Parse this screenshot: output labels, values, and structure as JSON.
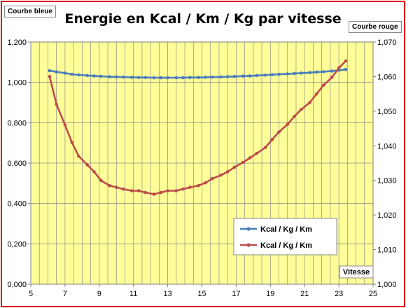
{
  "chart_data": {
    "type": "line",
    "title": "Energie en Kcal / Km / Kg par vitesse",
    "left_axis_label": "Courbe bleue",
    "right_axis_label": "Courbe rouge",
    "xlabel": "Vitesse",
    "xlim": [
      5,
      25
    ],
    "x_ticks": [
      "5",
      "7",
      "9",
      "11",
      "13",
      "15",
      "17",
      "19",
      "21",
      "23",
      "25"
    ],
    "ylim_left": [
      0,
      1.2
    ],
    "y_ticks_left": [
      "0,000",
      "0,200",
      "0,400",
      "0,600",
      "0,800",
      "1,000",
      "1,200"
    ],
    "ylim_right": [
      1.0,
      1.07
    ],
    "y_ticks_right": [
      "1,000",
      "1,010",
      "1,020",
      "1,030",
      "1,040",
      "1,050",
      "1,060",
      "1,070"
    ],
    "grid": true,
    "plot_background": "#ffff99",
    "legend_position": "bottom-right",
    "series": [
      {
        "name": "Kcal / Kg / Km",
        "axis": "left",
        "color": "#4a7ebb",
        "x": [
          6.1,
          6.5,
          7.0,
          7.4,
          7.8,
          8.3,
          8.7,
          9.1,
          9.6,
          10.0,
          10.4,
          10.9,
          11.3,
          11.7,
          12.2,
          12.6,
          13.0,
          13.5,
          13.9,
          14.3,
          14.8,
          15.2,
          15.6,
          16.1,
          16.5,
          16.9,
          17.4,
          17.8,
          18.2,
          18.7,
          19.1,
          19.5,
          20.0,
          20.4,
          20.8,
          21.3,
          21.7,
          22.1,
          22.6,
          23.0,
          23.4
        ],
        "y": [
          1.058,
          1.052,
          1.046,
          1.04,
          1.037,
          1.034,
          1.032,
          1.03,
          1.028,
          1.027,
          1.026,
          1.025,
          1.024,
          1.024,
          1.023,
          1.023,
          1.023,
          1.023,
          1.023,
          1.024,
          1.024,
          1.025,
          1.026,
          1.027,
          1.028,
          1.029,
          1.031,
          1.032,
          1.034,
          1.036,
          1.038,
          1.04,
          1.042,
          1.044,
          1.046,
          1.048,
          1.051,
          1.053,
          1.056,
          1.06,
          1.064
        ]
      },
      {
        "name": "Kcal / Kg / Km",
        "axis": "right",
        "color": "#be4b48",
        "x": [
          6.1,
          6.5,
          7.0,
          7.4,
          7.8,
          8.3,
          8.7,
          9.1,
          9.6,
          10.0,
          10.4,
          10.9,
          11.3,
          11.7,
          12.2,
          12.6,
          13.0,
          13.5,
          13.9,
          14.3,
          14.8,
          15.2,
          15.6,
          16.1,
          16.5,
          16.9,
          17.4,
          17.8,
          18.2,
          18.7,
          19.1,
          19.5,
          20.0,
          20.4,
          20.8,
          21.3,
          21.7,
          22.1,
          22.6,
          23.0,
          23.4
        ],
        "y": [
          1.06,
          1.052,
          1.046,
          1.041,
          1.037,
          1.0345,
          1.0325,
          1.03,
          1.0285,
          1.028,
          1.0275,
          1.027,
          1.027,
          1.0265,
          1.026,
          1.0265,
          1.027,
          1.027,
          1.0275,
          1.028,
          1.0285,
          1.0293,
          1.0305,
          1.0315,
          1.0325,
          1.0338,
          1.0352,
          1.0365,
          1.0378,
          1.0395,
          1.0418,
          1.044,
          1.0462,
          1.0485,
          1.0505,
          1.0525,
          1.055,
          1.0575,
          1.0598,
          1.0625,
          1.0645
        ]
      }
    ]
  }
}
